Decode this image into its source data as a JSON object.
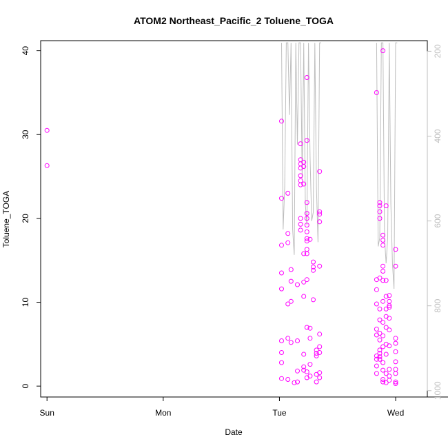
{
  "chart_data": {
    "type": "scatter",
    "title": "ATOM2 Northeast_Pacific_2 Toluene_TOGA",
    "xlabel": "Date",
    "ylabel": "Toluene_TOGA",
    "x_tick_labels": [
      "Sun",
      "Mon",
      "Tue",
      "Wed"
    ],
    "xlim": [
      -0.02,
      1.2
    ],
    "ylim": [
      -1.3,
      41.2
    ],
    "y_ticks": [
      0,
      10,
      20,
      30,
      40
    ],
    "y2_ticks": [
      200,
      400,
      600,
      800,
      1000
    ],
    "y2lim": [
      1015,
      175
    ],
    "grid": false,
    "legend": "none",
    "point_color": "#ff00ff",
    "line_color": "#bebebe",
    "series": [
      {
        "marker": "circle",
        "points": [
          [
            0.0,
            30.5
          ],
          [
            0.0,
            26.3
          ],
          [
            0.74,
            31.6
          ],
          [
            0.74,
            22.4
          ],
          [
            0.74,
            16.8
          ],
          [
            0.74,
            13.5
          ],
          [
            0.74,
            11.6
          ],
          [
            0.74,
            5.4
          ],
          [
            0.74,
            4.0
          ],
          [
            0.74,
            2.8
          ],
          [
            0.74,
            0.9
          ],
          [
            0.76,
            23.0
          ],
          [
            0.76,
            18.2
          ],
          [
            0.76,
            17.1
          ],
          [
            0.76,
            9.8
          ],
          [
            0.76,
            5.7
          ],
          [
            0.76,
            0.8
          ],
          [
            0.77,
            13.9
          ],
          [
            0.77,
            12.5
          ],
          [
            0.77,
            10.1
          ],
          [
            0.77,
            5.2
          ],
          [
            0.78,
            0.4
          ],
          [
            0.79,
            12.1
          ],
          [
            0.79,
            5.4
          ],
          [
            0.79,
            1.8
          ],
          [
            0.79,
            0.5
          ],
          [
            0.8,
            28.9
          ],
          [
            0.8,
            27.0
          ],
          [
            0.8,
            26.5
          ],
          [
            0.8,
            26.0
          ],
          [
            0.8,
            25.1
          ],
          [
            0.8,
            24.5
          ],
          [
            0.8,
            24.0
          ],
          [
            0.8,
            20.0
          ],
          [
            0.8,
            19.3
          ],
          [
            0.8,
            18.6
          ],
          [
            0.81,
            26.7
          ],
          [
            0.81,
            26.2
          ],
          [
            0.81,
            24.1
          ],
          [
            0.81,
            15.8
          ],
          [
            0.81,
            12.4
          ],
          [
            0.81,
            10.7
          ],
          [
            0.81,
            3.8
          ],
          [
            0.81,
            2.3
          ],
          [
            0.81,
            1.9
          ],
          [
            0.82,
            36.8
          ],
          [
            0.82,
            29.3
          ],
          [
            0.82,
            21.9
          ],
          [
            0.82,
            20.6
          ],
          [
            0.82,
            20.0
          ],
          [
            0.82,
            19.2
          ],
          [
            0.82,
            18.4
          ],
          [
            0.82,
            17.6
          ],
          [
            0.82,
            17.3
          ],
          [
            0.82,
            16.3
          ],
          [
            0.82,
            15.8
          ],
          [
            0.82,
            12.7
          ],
          [
            0.82,
            7.0
          ],
          [
            0.82,
            1.7
          ],
          [
            0.82,
            1.0
          ],
          [
            0.83,
            17.5
          ],
          [
            0.83,
            6.9
          ],
          [
            0.83,
            5.7
          ],
          [
            0.83,
            2.6
          ],
          [
            0.83,
            1.2
          ],
          [
            0.84,
            14.8
          ],
          [
            0.84,
            14.2
          ],
          [
            0.84,
            13.8
          ],
          [
            0.84,
            10.3
          ],
          [
            0.85,
            4.3
          ],
          [
            0.85,
            3.9
          ],
          [
            0.85,
            3.6
          ],
          [
            0.85,
            1.4
          ],
          [
            0.85,
            0.5
          ],
          [
            0.86,
            25.6
          ],
          [
            0.86,
            20.8
          ],
          [
            0.86,
            20.5
          ],
          [
            0.86,
            19.6
          ],
          [
            0.86,
            14.3
          ],
          [
            0.86,
            6.2
          ],
          [
            0.86,
            4.7
          ],
          [
            0.86,
            4.0
          ],
          [
            0.86,
            1.6
          ],
          [
            0.86,
            1.0
          ],
          [
            1.04,
            35.0
          ],
          [
            1.04,
            12.7
          ],
          [
            1.04,
            11.5
          ],
          [
            1.04,
            9.8
          ],
          [
            1.04,
            6.8
          ],
          [
            1.04,
            6.1
          ],
          [
            1.04,
            3.6
          ],
          [
            1.04,
            3.2
          ],
          [
            1.04,
            2.4
          ],
          [
            1.04,
            1.5
          ],
          [
            1.05,
            9.2
          ],
          [
            1.05,
            7.9
          ],
          [
            1.05,
            5.5
          ],
          [
            1.05,
            4.3
          ],
          [
            1.05,
            3.9
          ],
          [
            1.05,
            3.5
          ],
          [
            1.05,
            3.2
          ],
          [
            1.05,
            21.5
          ],
          [
            1.05,
            21.9
          ],
          [
            1.05,
            20.8
          ],
          [
            1.05,
            20.0
          ],
          [
            1.05,
            12.9
          ],
          [
            1.05,
            6.3
          ],
          [
            1.06,
            40.0
          ],
          [
            1.06,
            18.0
          ],
          [
            1.06,
            17.4
          ],
          [
            1.06,
            16.8
          ],
          [
            1.06,
            14.3
          ],
          [
            1.06,
            13.7
          ],
          [
            1.06,
            12.6
          ],
          [
            1.06,
            10.1
          ],
          [
            1.06,
            7.6
          ],
          [
            1.06,
            6.0
          ],
          [
            1.06,
            4.7
          ],
          [
            1.06,
            2.8
          ],
          [
            1.06,
            1.9
          ],
          [
            1.06,
            0.8
          ],
          [
            1.06,
            0.5
          ],
          [
            1.07,
            21.5
          ],
          [
            1.07,
            12.6
          ],
          [
            1.07,
            10.7
          ],
          [
            1.07,
            9.2
          ],
          [
            1.07,
            8.3
          ],
          [
            1.07,
            7.0
          ],
          [
            1.07,
            5.0
          ],
          [
            1.07,
            3.8
          ],
          [
            1.07,
            1.5
          ],
          [
            1.07,
            0.4
          ],
          [
            1.08,
            10.8
          ],
          [
            1.08,
            10.1
          ],
          [
            1.08,
            9.6
          ],
          [
            1.08,
            9.4
          ],
          [
            1.08,
            8.1
          ],
          [
            1.08,
            6.7
          ],
          [
            1.08,
            4.8
          ],
          [
            1.08,
            2.0
          ],
          [
            1.08,
            1.2
          ],
          [
            1.08,
            0.7
          ],
          [
            1.1,
            16.3
          ],
          [
            1.1,
            14.3
          ],
          [
            1.1,
            5.7
          ],
          [
            1.1,
            5.1
          ],
          [
            1.1,
            4.1
          ],
          [
            1.1,
            2.9
          ],
          [
            1.1,
            2.0
          ],
          [
            1.1,
            1.5
          ],
          [
            1.1,
            0.5
          ],
          [
            1.1,
            0.3
          ]
        ]
      },
      {
        "marker": "line",
        "axis": "right",
        "points": [
          [
            0.74,
            180
          ],
          [
            0.745,
            620
          ],
          [
            0.75,
            520
          ],
          [
            0.755,
            180
          ],
          [
            0.76,
            180
          ],
          [
            0.765,
            350
          ],
          [
            0.77,
            180
          ],
          [
            0.775,
            620
          ],
          [
            0.78,
            680
          ],
          [
            0.785,
            180
          ],
          [
            0.79,
            420
          ],
          [
            0.795,
            180
          ],
          [
            0.8,
            180
          ],
          [
            0.805,
            500
          ],
          [
            0.81,
            180
          ],
          [
            0.815,
            560
          ],
          [
            0.82,
            610
          ],
          [
            0.825,
            180
          ],
          [
            0.83,
            450
          ],
          [
            0.835,
            600
          ],
          [
            0.84,
            580
          ],
          [
            0.845,
            180
          ],
          [
            0.85,
            520
          ],
          [
            0.855,
            650
          ],
          [
            0.86,
            180
          ],
          [
            0.865,
            180
          ],
          [
            1.04,
            180
          ],
          [
            1.045,
            660
          ],
          [
            1.05,
            640
          ],
          [
            1.055,
            180
          ],
          [
            1.06,
            180
          ],
          [
            1.065,
            640
          ],
          [
            1.07,
            700
          ],
          [
            1.075,
            640
          ],
          [
            1.08,
            180
          ],
          [
            1.085,
            560
          ],
          [
            1.09,
            700
          ],
          [
            1.095,
            760
          ],
          [
            1.1,
            180
          ],
          [
            1.105,
            180
          ]
        ]
      }
    ]
  }
}
